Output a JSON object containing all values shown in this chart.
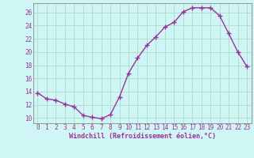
{
  "x": [
    0,
    1,
    2,
    3,
    4,
    5,
    6,
    7,
    8,
    9,
    10,
    11,
    12,
    13,
    14,
    15,
    16,
    17,
    18,
    19,
    20,
    21,
    22,
    23
  ],
  "y": [
    13.8,
    12.9,
    12.7,
    12.1,
    11.7,
    10.4,
    10.1,
    9.9,
    10.5,
    13.2,
    16.8,
    19.1,
    21.0,
    22.3,
    23.8,
    24.5,
    26.1,
    26.7,
    26.7,
    26.7,
    25.5,
    22.8,
    20.0,
    17.8
  ],
  "line_color": "#993399",
  "marker": "+",
  "marker_size": 4,
  "marker_lw": 1.0,
  "line_width": 1.0,
  "bg_color": "#cff5f5",
  "grid_color": "#aaddcc",
  "xlabel": "Windchill (Refroidissement éolien,°C)",
  "ylabel_ticks": [
    10,
    12,
    14,
    16,
    18,
    20,
    22,
    24,
    26
  ],
  "ylim": [
    9.2,
    27.4
  ],
  "xlim": [
    -0.5,
    23.5
  ],
  "tick_color": "#993399",
  "xlabel_color": "#993399",
  "tick_fontsize": 5.5,
  "xlabel_fontsize": 6.0
}
